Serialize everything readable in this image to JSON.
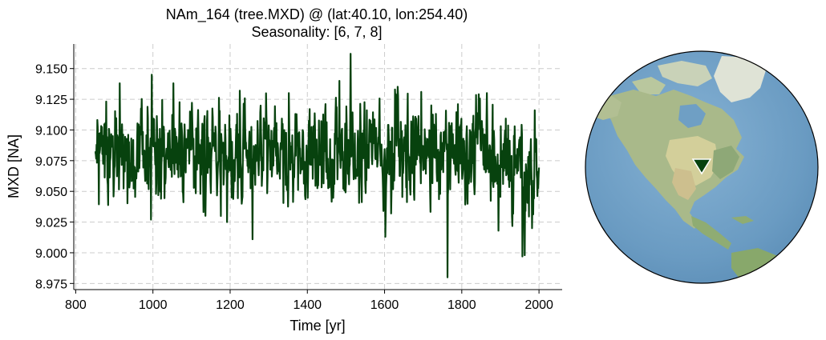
{
  "chart_data": {
    "type": "line",
    "title_line1": "NAm_164 (tree.MXD) @ (lat:40.10, lon:254.40)",
    "title_line2": "Seasonality: [6, 7, 8]",
    "xlabel": "Time [yr]",
    "ylabel": "MXD [NA]",
    "xlim": [
      795,
      2060
    ],
    "ylim": [
      8.97,
      9.17
    ],
    "xticks": [
      800,
      1000,
      1200,
      1400,
      1600,
      1800,
      2000
    ],
    "xtick_labels": [
      "800",
      "1000",
      "1200",
      "1400",
      "1600",
      "1800",
      "2000"
    ],
    "yticks": [
      8.975,
      9.0,
      9.025,
      9.05,
      9.075,
      9.1,
      9.125,
      9.15
    ],
    "ytick_labels": [
      "8.975",
      "9.000",
      "9.025",
      "9.050",
      "9.075",
      "9.100",
      "9.125",
      "9.150"
    ],
    "grid": true,
    "line_color": "#07420e",
    "series": [
      {
        "x_start": 850,
        "x_end": 2000,
        "step": 1,
        "baseline": 9.082,
        "late_baseline": 9.065,
        "amplitude": 0.018,
        "extremes": [
          {
            "x": 1512,
            "y": 9.162
          },
          {
            "x": 997,
            "y": 9.145
          },
          {
            "x": 1763,
            "y": 8.98
          },
          {
            "x": 1258,
            "y": 9.011
          },
          {
            "x": 1602,
            "y": 9.013
          },
          {
            "x": 1957,
            "y": 8.997
          },
          {
            "x": 1963,
            "y": 8.998
          },
          {
            "x": 995,
            "y": 9.027
          },
          {
            "x": 1192,
            "y": 9.025
          },
          {
            "x": 1483,
            "y": 9.14
          },
          {
            "x": 1627,
            "y": 9.133
          },
          {
            "x": 1053,
            "y": 9.138
          },
          {
            "x": 1225,
            "y": 9.132
          },
          {
            "x": 914,
            "y": 9.138
          },
          {
            "x": 1695,
            "y": 9.131
          },
          {
            "x": 1895,
            "y": 9.018
          },
          {
            "x": 1982,
            "y": 9.02
          },
          {
            "x": 1352,
            "y": 9.13
          },
          {
            "x": 1790,
            "y": 9.121
          },
          {
            "x": 1865,
            "y": 9.13
          }
        ]
      }
    ]
  },
  "map": {
    "ocean_color": "#6a9bc2",
    "marker_color": "#07420e",
    "marker_lat": 40.1,
    "marker_lon": 254.4
  }
}
